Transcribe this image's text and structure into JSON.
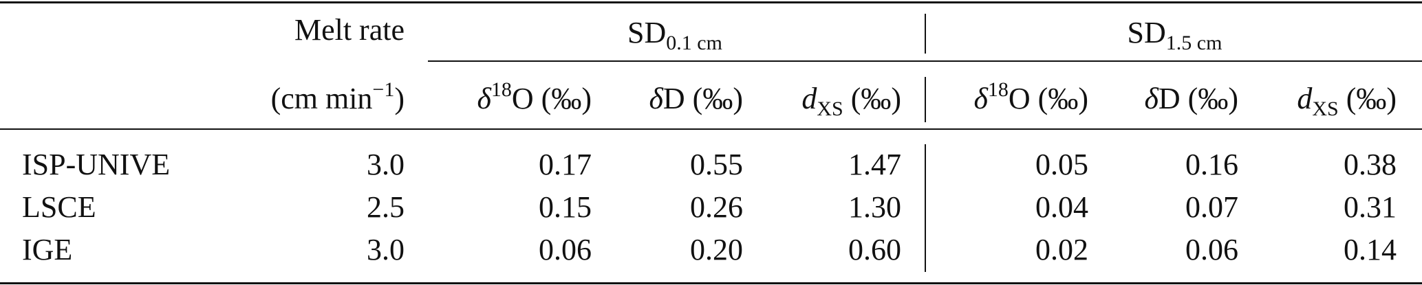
{
  "table": {
    "header": {
      "melt_rate_label": "Melt rate",
      "melt_rate_unit_pre": "(cm min",
      "melt_rate_unit_exp": "−1",
      "melt_rate_unit_post": ")",
      "group1": {
        "prefix": "SD",
        "subscript": "0.1 cm"
      },
      "group2": {
        "prefix": "SD",
        "subscript": "1.5 cm"
      },
      "d18o": {
        "delta": "δ",
        "sup": "18",
        "rest": "O (‰)"
      },
      "dd": {
        "delta": "δ",
        "rest": "D (‰)"
      },
      "dxs": {
        "d": "d",
        "sub": "XS",
        "rest": " (‰)"
      }
    },
    "rows": [
      {
        "lab": "ISP-UNIVE",
        "melt": "3.0",
        "g1": [
          "0.17",
          "0.55",
          "1.47"
        ],
        "g2": [
          "0.05",
          "0.16",
          "0.38"
        ]
      },
      {
        "lab": "LSCE",
        "melt": "2.5",
        "g1": [
          "0.15",
          "0.26",
          "1.30"
        ],
        "g2": [
          "0.04",
          "0.07",
          "0.31"
        ]
      },
      {
        "lab": "IGE",
        "melt": "3.0",
        "g1": [
          "0.06",
          "0.20",
          "0.60"
        ],
        "g2": [
          "0.02",
          "0.06",
          "0.14"
        ]
      }
    ]
  }
}
